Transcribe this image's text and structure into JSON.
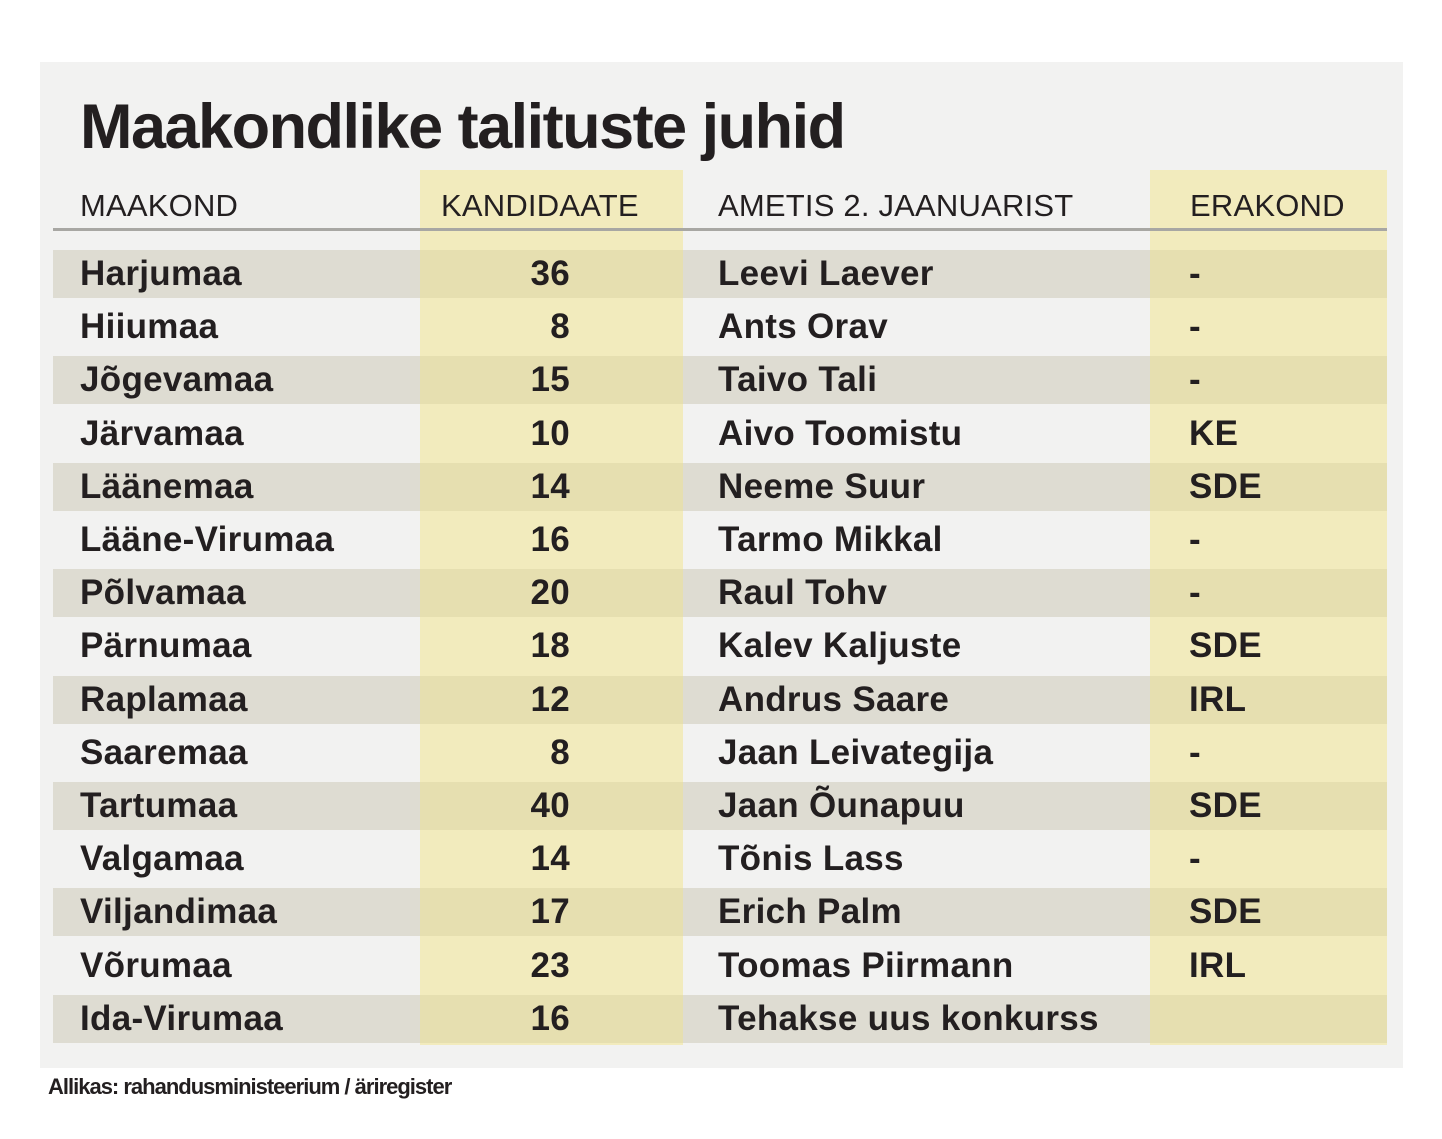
{
  "chart_data": {
    "type": "table",
    "title": "Maakondlike talituste juhid",
    "columns": [
      "MAAKOND",
      "KANDIDAATE",
      "AMETIS 2. JAANUARIST",
      "ERAKOND"
    ],
    "rows": [
      {
        "county": "Harjumaa",
        "candidates": "36",
        "name": "Leevi Laever",
        "party": "-"
      },
      {
        "county": "Hiiumaa",
        "candidates": "8",
        "name": "Ants Orav",
        "party": "-"
      },
      {
        "county": "Jõgevamaa",
        "candidates": "15",
        "name": "Taivo Tali",
        "party": "-"
      },
      {
        "county": "Järvamaa",
        "candidates": "10",
        "name": "Aivo Toomistu",
        "party": "KE"
      },
      {
        "county": "Läänemaa",
        "candidates": "14",
        "name": "Neeme Suur",
        "party": "SDE"
      },
      {
        "county": "Lääne-Virumaa",
        "candidates": "16",
        "name": "Tarmo Mikkal",
        "party": "-"
      },
      {
        "county": "Põlvamaa",
        "candidates": "20",
        "name": "Raul Tohv",
        "party": "-"
      },
      {
        "county": "Pärnumaa",
        "candidates": "18",
        "name": "Kalev Kaljuste",
        "party": "SDE"
      },
      {
        "county": "Raplamaa",
        "candidates": "12",
        "name": "Andrus Saare",
        "party": "IRL"
      },
      {
        "county": "Saaremaa",
        "candidates": "8",
        "name": "Jaan Leivategija",
        "party": "-"
      },
      {
        "county": "Tartumaa",
        "candidates": "40",
        "name": "Jaan Õunapuu",
        "party": "SDE"
      },
      {
        "county": "Valgamaa",
        "candidates": "14",
        "name": "Tõnis Lass",
        "party": "-"
      },
      {
        "county": "Viljandimaa",
        "candidates": "17",
        "name": "Erich Palm",
        "party": "SDE"
      },
      {
        "county": "Võrumaa",
        "candidates": "23",
        "name": "Toomas Piirmann",
        "party": "IRL"
      },
      {
        "county": "Ida-Virumaa",
        "candidates": "16",
        "name": "Tehakse uus konkurss",
        "party": ""
      }
    ],
    "source": "Allikas: rahandusministeerium / äriregister"
  },
  "colors": {
    "panel": "#f2f2f1",
    "row_shade": "#dedcd2",
    "highlight_column": "#f2ebbd",
    "highlight_column_shaded": "#e6dfb0",
    "text": "#231f20"
  }
}
